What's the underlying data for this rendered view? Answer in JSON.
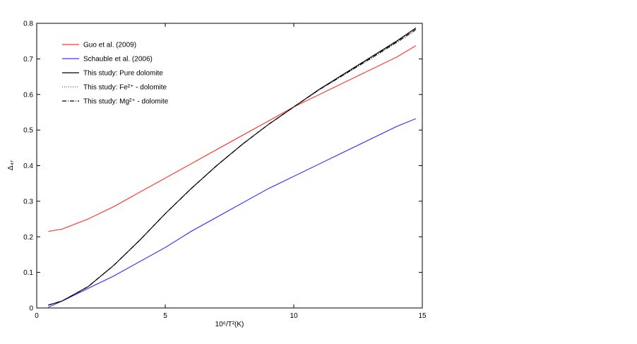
{
  "chart_data": {
    "type": "line",
    "xlabel": "10⁶/T²(K)",
    "ylabel": "Δ₄₇",
    "x": [
      0.45,
      1,
      2,
      3,
      4,
      5,
      6,
      7,
      8,
      9,
      10,
      11,
      12,
      13,
      14,
      14.75
    ],
    "series": [
      {
        "name": "Guo et al. (2009)",
        "color": "#ff3b30",
        "dash": "none",
        "values": [
          0.215,
          0.222,
          0.25,
          0.285,
          0.325,
          0.365,
          0.405,
          0.445,
          0.485,
          0.525,
          0.565,
          0.6,
          0.635,
          0.67,
          0.705,
          0.737
        ]
      },
      {
        "name": "Schauble et al. (2006)",
        "color": "#3b3bff",
        "dash": "none",
        "values": [
          0.002,
          0.02,
          0.055,
          0.09,
          0.13,
          0.17,
          0.215,
          0.255,
          0.295,
          0.335,
          0.37,
          0.405,
          0.44,
          0.475,
          0.51,
          0.532
        ]
      },
      {
        "name": "This study: Pure dolomite",
        "color": "#000000",
        "dash": "none",
        "values": [
          0.008,
          0.02,
          0.06,
          0.12,
          0.19,
          0.265,
          0.335,
          0.4,
          0.46,
          0.515,
          0.565,
          0.615,
          0.66,
          0.705,
          0.75,
          0.787
        ]
      },
      {
        "name": "This study: Fe²⁺ - dolomite",
        "color": "#555555",
        "dash": "1,2",
        "values": [
          0.008,
          0.02,
          0.06,
          0.12,
          0.19,
          0.265,
          0.335,
          0.4,
          0.46,
          0.515,
          0.565,
          0.613,
          0.657,
          0.7,
          0.745,
          0.78
        ]
      },
      {
        "name": "This study: Mg²⁺ - dolomite",
        "color": "#000000",
        "dash": "6,2,1,2",
        "values": [
          0.008,
          0.02,
          0.06,
          0.12,
          0.19,
          0.265,
          0.335,
          0.4,
          0.46,
          0.515,
          0.565,
          0.614,
          0.658,
          0.702,
          0.747,
          0.783
        ]
      }
    ],
    "xlim": [
      0,
      15
    ],
    "xticks": [
      0,
      5,
      10,
      15
    ],
    "ylim": [
      0,
      0.8
    ],
    "yticks": [
      0,
      0.1,
      0.2,
      0.3,
      0.4,
      0.5,
      0.6,
      0.7,
      0.8
    ],
    "legend": "upper-left"
  }
}
